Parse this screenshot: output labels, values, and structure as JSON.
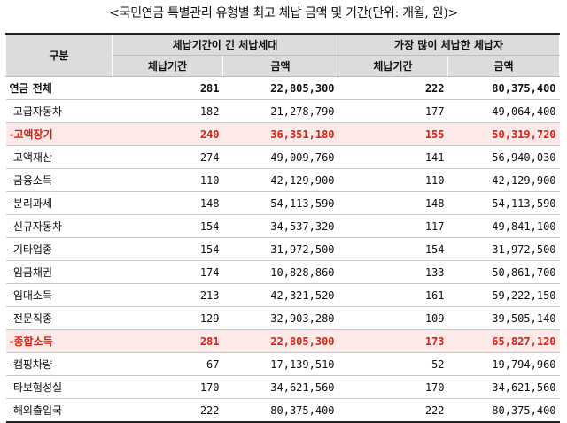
{
  "caption": "<국민연금 특별관리 유형별 최고 체납 금액 및 기간(단위: 개월, 원)>",
  "header": {
    "category": "구분",
    "group1": "체납기간이 긴 체납세대",
    "group2": "가장 많이 체납한 체납자",
    "col_period": "체납기간",
    "col_amount": "금액"
  },
  "rows": [
    {
      "label": "연금 전체",
      "p1": "281",
      "a1": "22,805,300",
      "p2": "222",
      "a2": "80,375,400",
      "style": "total"
    },
    {
      "label": "-고급자동차",
      "p1": "182",
      "a1": "21,278,790",
      "p2": "177",
      "a2": "49,064,400",
      "style": ""
    },
    {
      "label": "-고액장기",
      "p1": "240",
      "a1": "36,351,180",
      "p2": "155",
      "a2": "50,319,720",
      "style": "hl"
    },
    {
      "label": "-고액재산",
      "p1": "274",
      "a1": "49,009,760",
      "p2": "141",
      "a2": "56,940,030",
      "style": ""
    },
    {
      "label": "-금융소득",
      "p1": "110",
      "a1": "42,129,900",
      "p2": "110",
      "a2": "42,129,900",
      "style": ""
    },
    {
      "label": "-분리과세",
      "p1": "148",
      "a1": "54,113,590",
      "p2": "148",
      "a2": "54,113,590",
      "style": ""
    },
    {
      "label": "-신규자동차",
      "p1": "154",
      "a1": "34,537,320",
      "p2": "117",
      "a2": "49,841,100",
      "style": ""
    },
    {
      "label": "-기타업종",
      "p1": "154",
      "a1": "31,972,500",
      "p2": "154",
      "a2": "31,972,500",
      "style": ""
    },
    {
      "label": "-임금채권",
      "p1": "174",
      "a1": "10,828,860",
      "p2": "133",
      "a2": "50,861,700",
      "style": ""
    },
    {
      "label": "-임대소득",
      "p1": "213",
      "a1": "42,321,520",
      "p2": "161",
      "a2": "59,222,150",
      "style": ""
    },
    {
      "label": "-전문직종",
      "p1": "129",
      "a1": "32,903,280",
      "p2": "109",
      "a2": "39,505,140",
      "style": ""
    },
    {
      "label": "-종합소득",
      "p1": "281",
      "a1": "22,805,300",
      "p2": "173",
      "a2": "65,827,120",
      "style": "hl"
    },
    {
      "label": "-캠핑차량",
      "p1": "67",
      "a1": "17,139,510",
      "p2": "52",
      "a2": "19,794,960",
      "style": ""
    },
    {
      "label": "-타보험성실",
      "p1": "170",
      "a1": "34,621,560",
      "p2": "170",
      "a2": "34,621,560",
      "style": ""
    },
    {
      "label": "-해외출입국",
      "p1": "222",
      "a1": "80,375,400",
      "p2": "222",
      "a2": "80,375,400",
      "style": ""
    }
  ]
}
